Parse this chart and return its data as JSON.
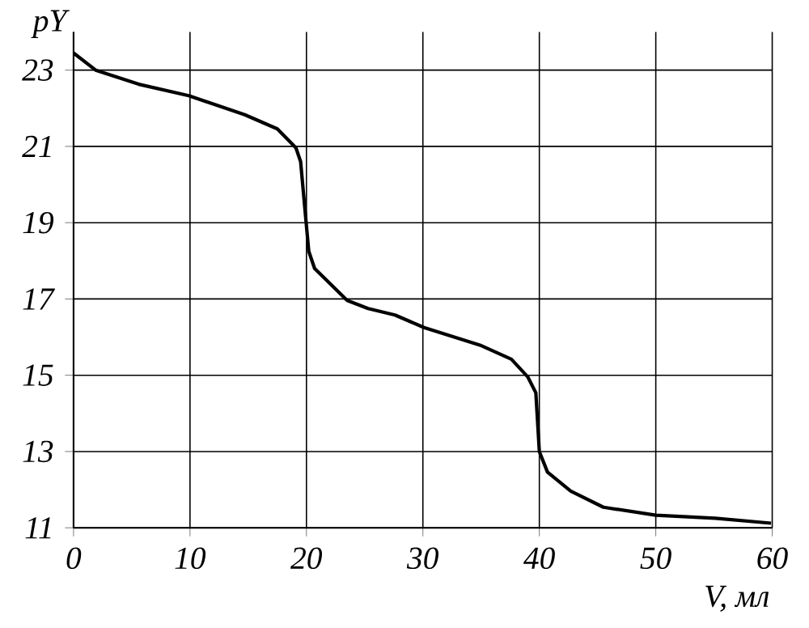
{
  "chart_data": {
    "type": "line",
    "xlabel": "V, мл",
    "ylabel": "pY",
    "x": [
      0,
      1.9,
      5.6,
      9.9,
      14.7,
      17.5,
      19.1,
      19.5,
      19.9,
      20.2,
      20.7,
      23.5,
      25.3,
      27.6,
      30.1,
      34.9,
      37.6,
      39.0,
      39.7,
      40.0,
      40.7,
      42.7,
      45.5,
      50.0,
      55.1,
      59.9
    ],
    "series": [
      {
        "color": "#000000",
        "values": [
          23.45,
          23.0,
          22.63,
          22.33,
          21.83,
          21.46,
          20.96,
          20.6,
          19.25,
          18.25,
          17.8,
          16.96,
          16.75,
          16.58,
          16.25,
          15.79,
          15.42,
          14.96,
          14.54,
          13.0,
          12.46,
          11.96,
          11.54,
          11.33,
          11.25,
          11.12
        ]
      }
    ],
    "xlim": [
      0,
      60
    ],
    "ylim": [
      11,
      24
    ],
    "xticks": [
      0,
      10,
      20,
      30,
      40,
      50,
      60
    ],
    "yticks": [
      11,
      13,
      15,
      17,
      19,
      21,
      23
    ],
    "grid": true,
    "marker": "none",
    "line_style": "solid"
  }
}
